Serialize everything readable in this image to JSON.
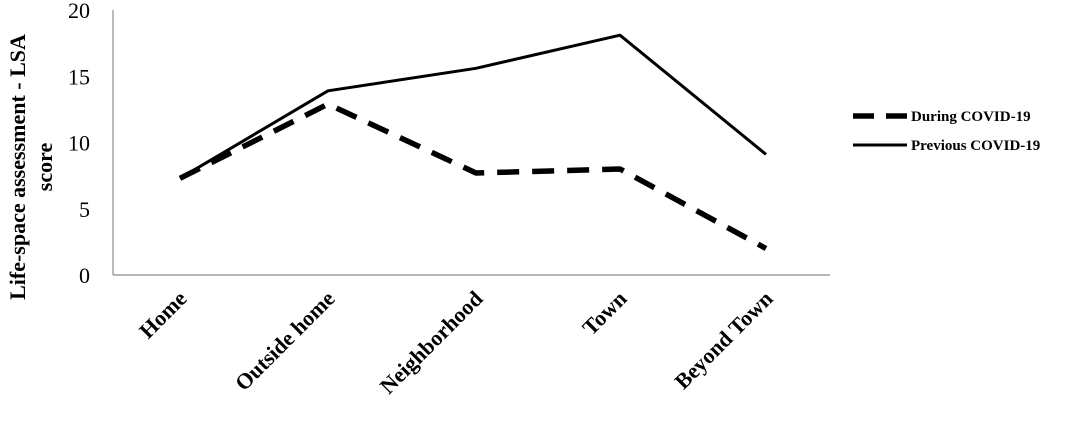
{
  "chart_data": {
    "type": "line",
    "categories": [
      "Home",
      "Outside home",
      "Neighborhood",
      "Town",
      "Beyond Town"
    ],
    "series": [
      {
        "name": "During COVID-19",
        "values": [
          7.3,
          12.9,
          7.7,
          8.0,
          2.0
        ],
        "color": "#000000",
        "style": "dashed"
      },
      {
        "name": "Previous COVID-19",
        "values": [
          7.3,
          13.9,
          15.6,
          18.1,
          9.1
        ],
        "color": "#000000",
        "style": "solid"
      }
    ],
    "ylabel_line1": "Life-space assessment - LSA",
    "ylabel_line2": "score",
    "xlabel": "",
    "title": "",
    "ylim": [
      0,
      20
    ],
    "yticks": [
      0,
      5,
      10,
      15,
      20
    ],
    "grid": false,
    "legend_position": "right"
  }
}
